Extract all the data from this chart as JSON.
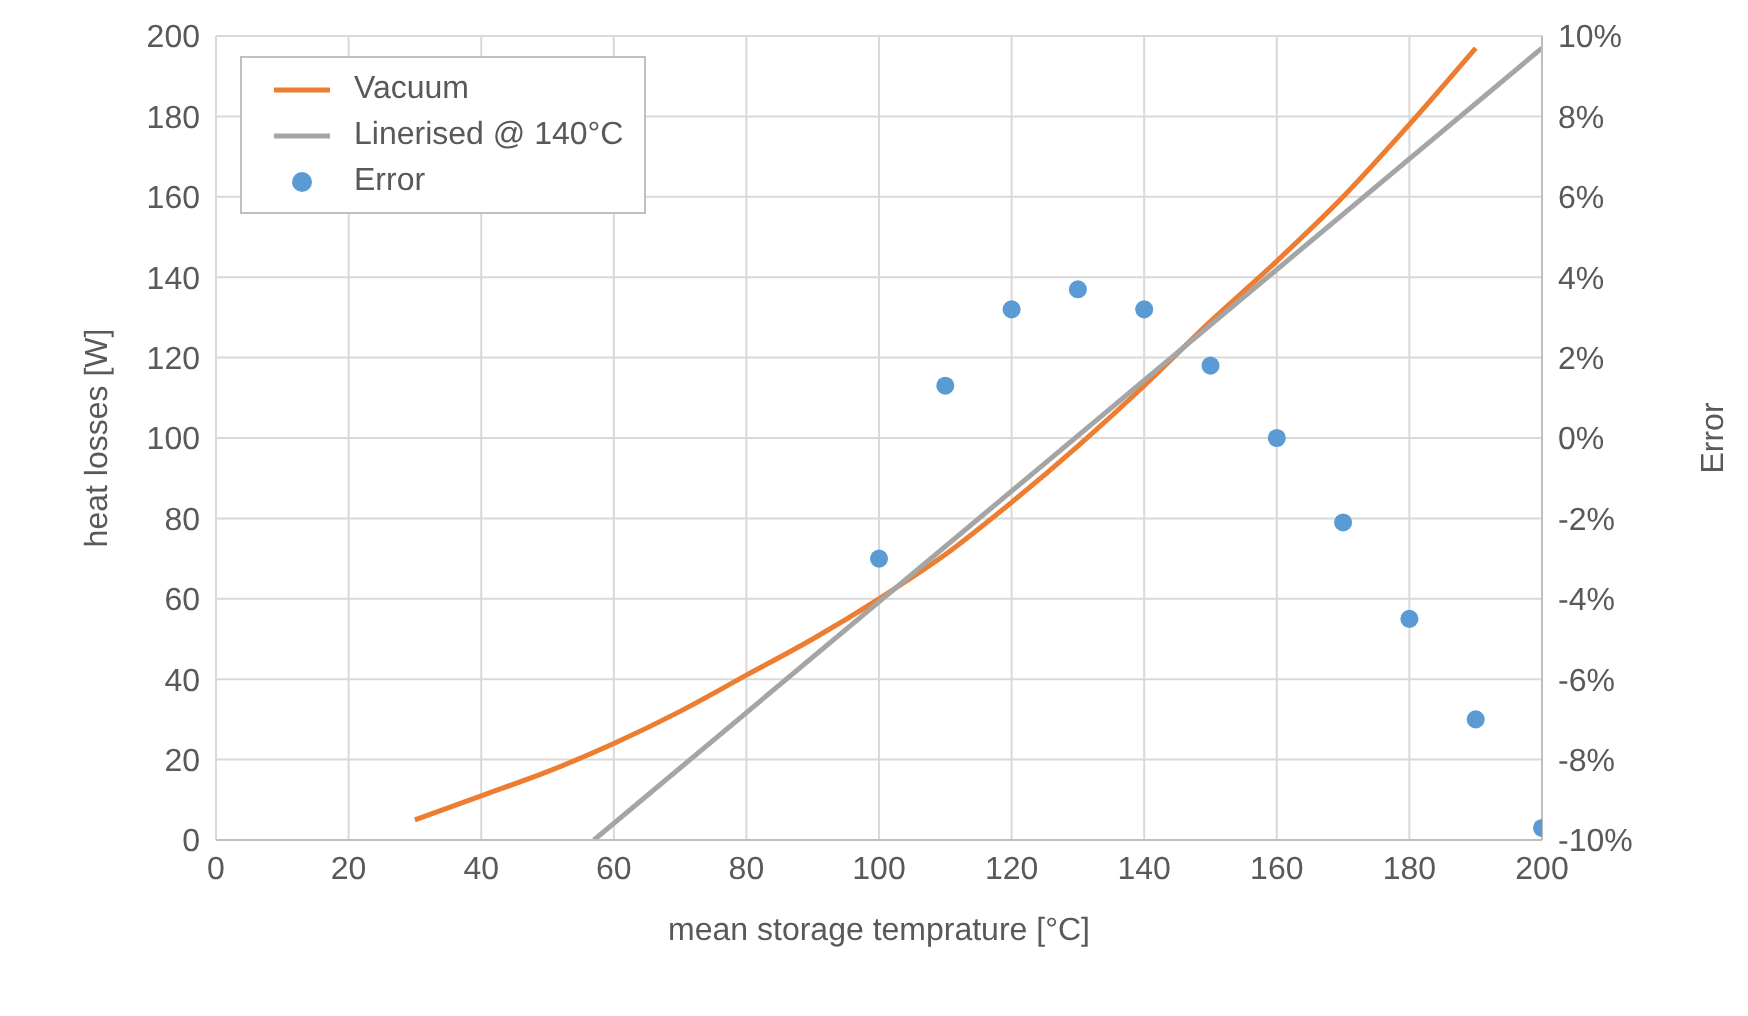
{
  "chart_data": {
    "type": "line",
    "xlabel": "mean storage temprature [°C]",
    "ylabel": "heat losses [W]",
    "y2label": "Error",
    "xlim": [
      0,
      200
    ],
    "xticks": [
      0,
      20,
      40,
      60,
      80,
      100,
      120,
      140,
      160,
      180,
      200
    ],
    "ylim": [
      0,
      200
    ],
    "yticks": [
      0,
      20,
      40,
      60,
      80,
      100,
      120,
      140,
      160,
      180,
      200
    ],
    "y2lim": [
      -10,
      10
    ],
    "y2ticks": [
      {
        "value": -10,
        "label": "-10%"
      },
      {
        "value": -8,
        "label": "-8%"
      },
      {
        "value": -6,
        "label": "-6%"
      },
      {
        "value": -4,
        "label": "-4%"
      },
      {
        "value": -2,
        "label": "-2%"
      },
      {
        "value": 0,
        "label": "0%"
      },
      {
        "value": 2,
        "label": "2%"
      },
      {
        "value": 4,
        "label": "4%"
      },
      {
        "value": 6,
        "label": "6%"
      },
      {
        "value": 8,
        "label": "8%"
      },
      {
        "value": 10,
        "label": "10%"
      }
    ],
    "grid": true,
    "legend": "top left",
    "series": [
      {
        "name": "Vacuum",
        "type": "line",
        "color": "#ed7d31",
        "marker": "none",
        "x": [
          30,
          40,
          50,
          60,
          70,
          80,
          90,
          100,
          110,
          120,
          130,
          140,
          150,
          160,
          170,
          180,
          190
        ],
        "values": [
          5,
          11,
          17,
          24,
          32,
          41,
          50,
          60,
          71,
          84,
          98,
          113,
          129,
          144,
          160,
          178,
          197
        ]
      },
      {
        "name": "Linerised @ 140°C",
        "type": "line",
        "color": "#a5a5a5",
        "marker": "none",
        "x": [
          57,
          200
        ],
        "values": [
          0,
          197
        ]
      },
      {
        "name": "Error",
        "type": "scatter",
        "axis": "y2",
        "color": "#5b9bd5",
        "marker": "circle",
        "x": [
          100,
          110,
          120,
          130,
          140,
          150,
          160,
          170,
          180,
          190,
          200
        ],
        "values": [
          -3.0,
          1.3,
          3.2,
          3.7,
          3.2,
          1.8,
          0.0,
          -2.1,
          -4.5,
          -7.0,
          -9.7
        ]
      }
    ]
  }
}
